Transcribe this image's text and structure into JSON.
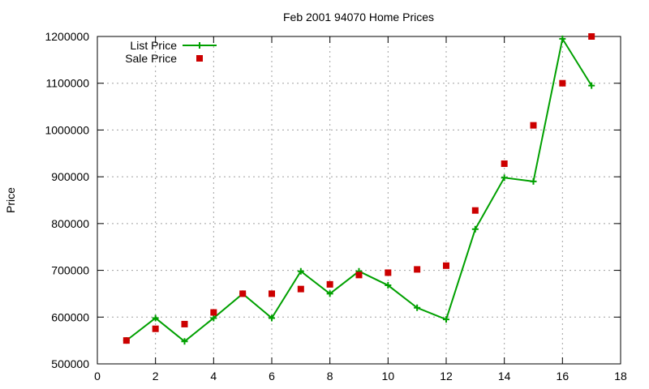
{
  "chart_data": {
    "type": "line",
    "title": "Feb 2001 94070 Home Prices",
    "xlabel": "",
    "ylabel": "Price",
    "xlim": [
      0,
      18
    ],
    "ylim": [
      500000,
      1200000
    ],
    "x_ticks": [
      "0",
      "2",
      "4",
      "6",
      "8",
      "10",
      "12",
      "14",
      "16",
      "18"
    ],
    "y_ticks": [
      "500000",
      "600000",
      "700000",
      "800000",
      "900000",
      "1000000",
      "1100000",
      "1200000"
    ],
    "grid": true,
    "legend_position": "top-left",
    "x": [
      1,
      2,
      3,
      4,
      5,
      6,
      7,
      8,
      9,
      10,
      11,
      12,
      13,
      14,
      15,
      16,
      17
    ],
    "series": [
      {
        "name": "List Price",
        "style": "line-plus",
        "color": "#00a000",
        "values": [
          550000,
          598000,
          548000,
          598000,
          650000,
          598000,
          698000,
          650000,
          698000,
          668000,
          620000,
          595000,
          788000,
          898000,
          890000,
          1195000,
          1095000
        ]
      },
      {
        "name": "Sale Price",
        "style": "square-points",
        "color": "#cc0000",
        "values": [
          550000,
          575000,
          585000,
          610000,
          650000,
          650000,
          660000,
          670000,
          690000,
          695000,
          702000,
          710000,
          828000,
          928000,
          1010000,
          1100000,
          1200000
        ]
      }
    ]
  }
}
